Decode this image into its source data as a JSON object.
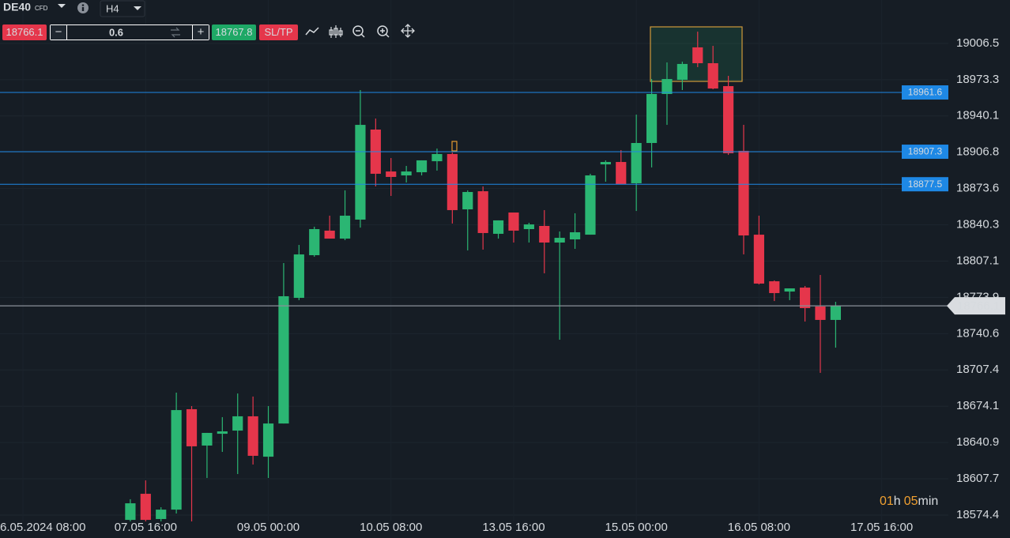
{
  "toolbar": {
    "symbol": "DE40",
    "symbol_type": "CFD",
    "timeframe": "H4",
    "sell_price": "18766.1",
    "minus": "−",
    "volume": "0.6",
    "plus": "+",
    "buy_price": "18767.8",
    "sl_tp": "SL/TP"
  },
  "timer": {
    "hours": "01",
    "hour_unit": "h",
    "minutes": "05",
    "minute_unit": "min"
  },
  "chart_data": {
    "type": "candlestick",
    "open": [
      18570.0,
      18593.9,
      18570.8,
      18579.4,
      18671.4,
      18638.1,
      18648.9,
      18651.8,
      18664.9,
      18627.9,
      18658.3,
      18773.4,
      18812.5,
      18835.0,
      18827.7,
      18845.1,
      18927.6,
      18889.2,
      18885.6,
      18888.5,
      18898.6,
      18905.2,
      18854.5,
      18871.1,
      18832.1,
      18851.6,
      18836.4,
      18839.3,
      18824.1,
      18827.0,
      18831.3,
      18895.7,
      18897.9,
      18878.4,
      18915.3,
      18960.2,
      18973.2,
      19002.9,
      18988.4,
      18967.4,
      18908.1,
      18831.3,
      18788.6,
      18779.2,
      18782.8,
      18765.5,
      18753.2
    ],
    "high": [
      18588.9,
      18606.2,
      18581.6,
      18686.6,
      18674.3,
      18649.7,
      18664.1,
      18685.8,
      18683.0,
      18674.3,
      18805.3,
      18821.9,
      18838.6,
      18848.7,
      18871.9,
      18963.8,
      18937.7,
      18901.5,
      18894.3,
      18899.4,
      18910.2,
      18906.6,
      18871.9,
      18875.5,
      18844.4,
      18851.6,
      18842.2,
      18853.8,
      18834.2,
      18850.9,
      18887.1,
      18899.4,
      18908.8,
      18941.3,
      18973.9,
      18989.1,
      18989.8,
      19017.3,
      19004.3,
      18976.8,
      18931.9,
      18848.7,
      18789.4,
      18782.1,
      18784.3,
      18794.4,
      18769.8
    ],
    "low": [
      18568.6,
      18568.6,
      18568.6,
      18575.8,
      18568.6,
      18608.4,
      18632.3,
      18612.0,
      18620.7,
      18608.4,
      18658.3,
      18771.3,
      18811.1,
      18827.7,
      18826.3,
      18837.8,
      18875.5,
      18866.8,
      18879.1,
      18885.6,
      18890.0,
      18841.5,
      18816.9,
      18817.6,
      18827.7,
      18824.1,
      18824.1,
      18795.9,
      18735.1,
      18818.3,
      18831.3,
      18879.8,
      18877.7,
      18853.0,
      18892.9,
      18931.9,
      18963.8,
      18984.8,
      18964.5,
      18904.4,
      18813.2,
      18785.7,
      18770.5,
      18771.3,
      18751.7,
      18704.7,
      18727.8
    ],
    "close": [
      18585.2,
      18570.0,
      18579.4,
      18670.6,
      18637.4,
      18649.7,
      18651.1,
      18664.9,
      18628.7,
      18658.3,
      18774.9,
      18813.2,
      18836.4,
      18827.7,
      18848.7,
      18931.9,
      18887.1,
      18884.2,
      18889.2,
      18899.4,
      18905.2,
      18853.8,
      18870.4,
      18832.8,
      18844.4,
      18835.0,
      18840.7,
      18824.1,
      18828.4,
      18833.5,
      18885.6,
      18897.9,
      18877.7,
      18915.3,
      18960.2,
      18973.9,
      18987.7,
      18988.4,
      18965.2,
      18905.9,
      18830.6,
      18786.5,
      18777.8,
      18782.1,
      18764.0,
      18753.2,
      18766.1
    ],
    "up_color": "#2bb673",
    "down_color": "#e5364b",
    "ylim": [
      18568.6,
      19046.3
    ],
    "yticks": [
      19006.5,
      18973.3,
      18940.1,
      18906.8,
      18873.6,
      18840.3,
      18807.1,
      18773.9,
      18740.6,
      18707.4,
      18674.1,
      18640.9,
      18607.7,
      18574.4
    ],
    "xlim": [
      -8.5,
      53.35
    ],
    "xticks": [
      {
        "value": -7,
        "label": "6.05.2024 08:00"
      },
      {
        "value": 1,
        "label": "07.05 16:00"
      },
      {
        "value": 9,
        "label": "09.05 00:00"
      },
      {
        "value": 17,
        "label": "10.05 08:00"
      },
      {
        "value": 25,
        "label": "13.05 16:00"
      },
      {
        "value": 33,
        "label": "15.05 00:00"
      },
      {
        "value": 41,
        "label": "16.05 08:00"
      },
      {
        "value": 49,
        "label": "17.05 16:00"
      }
    ],
    "grid": true,
    "price_lines": [
      18961.6,
      18907.3,
      18877.5
    ],
    "price_line_color": "#1e88e5",
    "current_price": 18766.1,
    "current_price_color": "#8a9099"
  }
}
